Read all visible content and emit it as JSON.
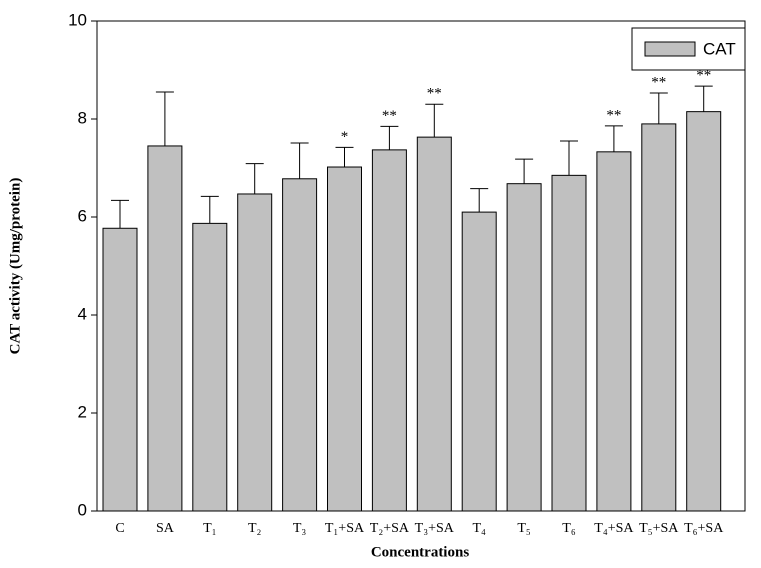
{
  "chart_data": {
    "type": "bar",
    "y_label": "CAT activity (Umg/protein)",
    "x_label": "Concentrations",
    "categories": [
      "C",
      "SA",
      "T₁",
      "T₂",
      "T₃",
      "T₁+SA",
      "T₂+SA",
      "T₃+SA",
      "T₄",
      "T₅",
      "T₆",
      "T₄+SA",
      "T₅+SA",
      "T₆+SA"
    ],
    "series": [
      {
        "name": "CAT",
        "color": "#c0c0c0",
        "values": [
          5.77,
          7.45,
          5.87,
          6.47,
          6.78,
          7.02,
          7.37,
          7.63,
          6.1,
          6.68,
          6.85,
          7.33,
          7.9,
          8.15
        ],
        "errors": [
          0.57,
          1.1,
          0.55,
          0.62,
          0.73,
          0.4,
          0.48,
          0.67,
          0.48,
          0.5,
          0.7,
          0.53,
          0.63,
          0.52
        ]
      }
    ],
    "annotations": [
      null,
      null,
      null,
      null,
      null,
      "*",
      "**",
      "**",
      null,
      null,
      null,
      "**",
      "**",
      "**"
    ],
    "ylim": [
      0,
      10
    ],
    "yticks": [
      0,
      2,
      4,
      6,
      8,
      10
    ],
    "legend": "top-right"
  }
}
